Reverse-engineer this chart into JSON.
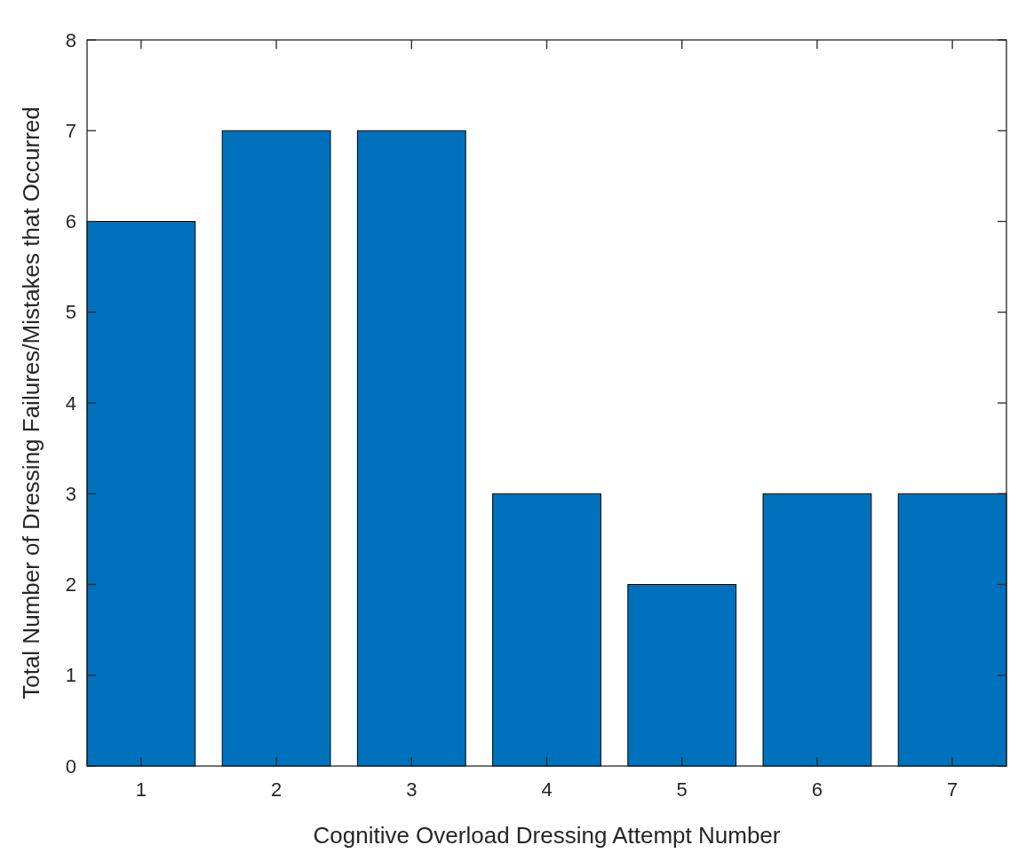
{
  "chart_data": {
    "type": "bar",
    "xlabel": "Cognitive Overload Dressing Attempt Number",
    "ylabel": "Total Number of Dressing Failures/Mistakes that Occurred",
    "categories": [
      "1",
      "2",
      "3",
      "4",
      "5",
      "6",
      "7"
    ],
    "values": [
      6,
      7,
      7,
      3,
      2,
      3,
      3
    ],
    "color": "#0072bd",
    "ylim": [
      0,
      8
    ],
    "yticks": [
      0,
      1,
      2,
      3,
      4,
      5,
      6,
      7,
      8
    ],
    "grid": false
  }
}
